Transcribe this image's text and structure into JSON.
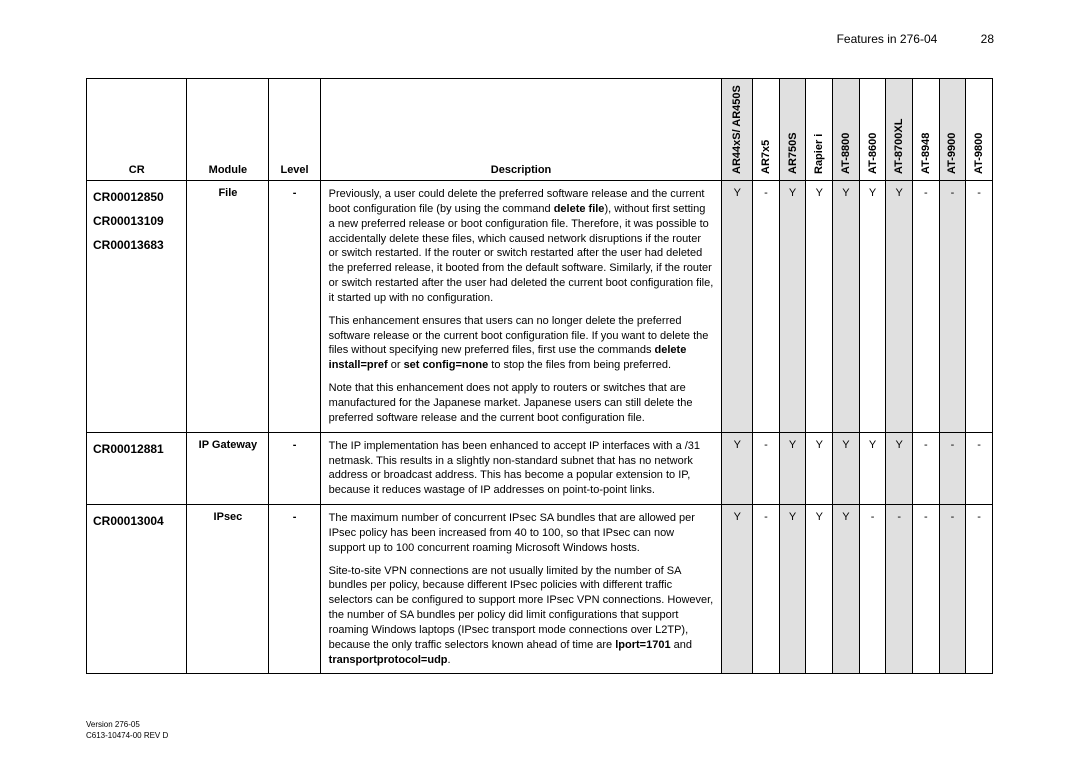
{
  "header": {
    "title": "Features in 276-04",
    "page": "28"
  },
  "columns": {
    "cr": "CR",
    "module": "Module",
    "level": "Level",
    "description": "Description",
    "devices": [
      {
        "key": "ar44xs",
        "label": "AR44xS/ AR450S",
        "shaded": true
      },
      {
        "key": "ar7x5",
        "label": "AR7x5",
        "shaded": false
      },
      {
        "key": "ar750s",
        "label": "AR750S",
        "shaded": true
      },
      {
        "key": "rapieri",
        "label": "Rapier i",
        "shaded": false
      },
      {
        "key": "at8800",
        "label": "AT-8800",
        "shaded": true
      },
      {
        "key": "at8600",
        "label": "AT-8600",
        "shaded": false
      },
      {
        "key": "at8700xl",
        "label": "AT-8700XL",
        "shaded": true
      },
      {
        "key": "at8948",
        "label": "AT-8948",
        "shaded": false
      },
      {
        "key": "at9900",
        "label": "AT-9900",
        "shaded": true
      },
      {
        "key": "at9800",
        "label": "AT-9800",
        "shaded": false
      }
    ]
  },
  "rows": [
    {
      "cr": [
        "CR00012850",
        "CR00013109",
        "CR00013683"
      ],
      "module": "File",
      "level": "-",
      "description": [
        {
          "text": "Previously, a user could delete the preferred software release and the current boot configuration file (by using the command ",
          "bold1": "delete file",
          "text2": "), without first setting a new preferred release or boot configuration file. Therefore, it was possible to accidentally delete these files, which caused network disruptions if the router or switch restarted. If the router or switch restarted after the user had deleted the preferred release, it booted from the default software. Similarly, if the router or switch restarted after the user had deleted the current boot configuration file, it started up with no configuration."
        },
        {
          "text": "This enhancement ensures that users can no longer delete the preferred software release or the current boot configuration file. If you want to delete the files without specifying new preferred files, first use the commands ",
          "bold1": "delete install=pref",
          "text2": " or ",
          "bold2": "set config=none",
          "text3": " to stop the files from being preferred."
        },
        {
          "text": "Note that this enhancement does not apply to routers or switches that are manufactured for the Japanese market. Japanese users can still delete the preferred software release and the current boot configuration file."
        }
      ],
      "devs": {
        "ar44xs": "Y",
        "ar7x5": "-",
        "ar750s": "Y",
        "rapieri": "Y",
        "at8800": "Y",
        "at8600": "Y",
        "at8700xl": "Y",
        "at8948": "-",
        "at9900": "-",
        "at9800": "-"
      }
    },
    {
      "cr": [
        "CR00012881"
      ],
      "module": "IP Gateway",
      "level": "-",
      "description": [
        {
          "text": "The IP implementation has been enhanced to accept IP interfaces with a /31 netmask. This results in a slightly non-standard subnet that has no network address or broadcast address. This has become a popular extension to IP, because it reduces wastage of IP addresses on point-to-point links."
        }
      ],
      "devs": {
        "ar44xs": "Y",
        "ar7x5": "-",
        "ar750s": "Y",
        "rapieri": "Y",
        "at8800": "Y",
        "at8600": "Y",
        "at8700xl": "Y",
        "at8948": "-",
        "at9900": "-",
        "at9800": "-"
      }
    },
    {
      "cr": [
        "CR00013004"
      ],
      "module": "IPsec",
      "level": "-",
      "description": [
        {
          "text": "The maximum number of concurrent IPsec SA bundles that are allowed per IPsec policy has been increased from 40 to 100, so that IPsec can now support up to 100 concurrent roaming Microsoft Windows hosts."
        },
        {
          "text": "Site-to-site VPN connections are not usually limited by the number of SA bundles per policy, because different IPsec policies with different traffic selectors can be configured to support more IPsec VPN connections. However, the number of SA bundles per policy did limit configurations that support roaming Windows laptops (IPsec transport mode connections over L2TP), because the only traffic selectors known ahead of time are ",
          "bold1": "lport=1701",
          "text2": " and ",
          "bold2": "transportprotocol=udp",
          "text3": "."
        }
      ],
      "devs": {
        "ar44xs": "Y",
        "ar7x5": "-",
        "ar750s": "Y",
        "rapieri": "Y",
        "at8800": "Y",
        "at8600": "-",
        "at8700xl": "-",
        "at8948": "-",
        "at9900": "-",
        "at9800": "-"
      }
    }
  ],
  "footer": {
    "line1": "Version 276-05",
    "line2": "C613-10474-00 REV D"
  }
}
